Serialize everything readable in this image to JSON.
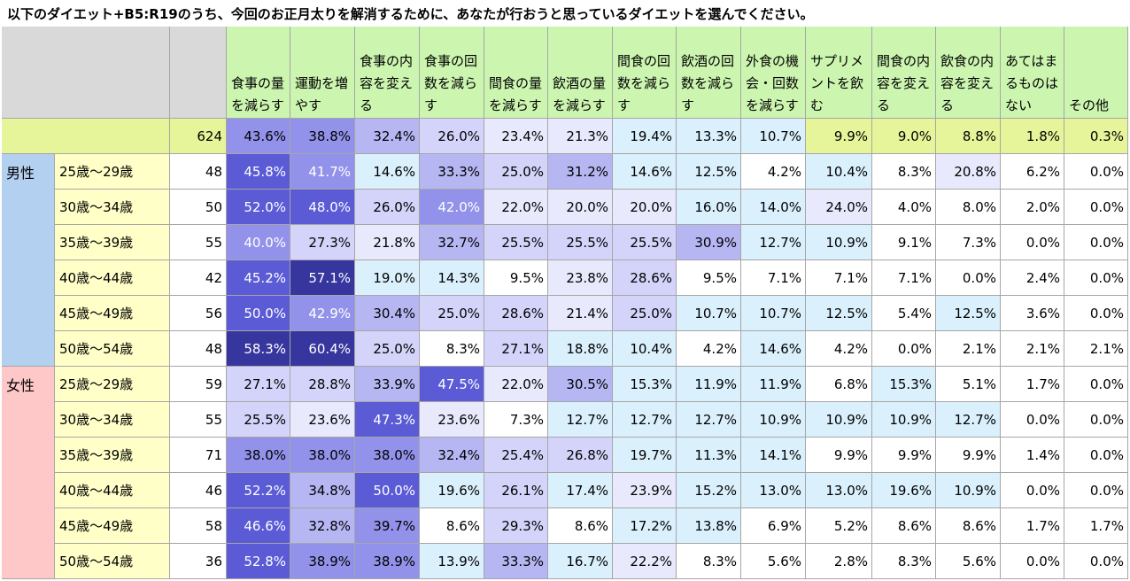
{
  "title": "以下のダイエット+B5:R19のうち、今回のお正月太りを解消するために、あなたが行おうと思っているダイエットを選んでください。",
  "chart_data": {
    "type": "table",
    "columns": [
      "食事の量を減らす",
      "運動を増やす",
      "食事の内容を変える",
      "食事の回数を減らす",
      "間食の量を減らす",
      "飲酒の量を減らす",
      "間食の回数を減らす",
      "飲酒の回数を減らす",
      "外食の機会・回数を減らす",
      "サプリメントを飲む",
      "間食の内容を変える",
      "飲食の内容を変える",
      "あてはまるものはない",
      "その他"
    ],
    "total": {
      "n": 624,
      "values": [
        "43.6%",
        "38.8%",
        "32.4%",
        "26.0%",
        "23.4%",
        "21.3%",
        "19.4%",
        "13.3%",
        "10.7%",
        "9.9%",
        "9.0%",
        "8.8%",
        "1.8%",
        "0.3%"
      ]
    },
    "groups": [
      {
        "label": "男性",
        "color": "#b4d0f0",
        "rows": [
          {
            "age": "25歳～29歳",
            "n": 48,
            "values": [
              "45.8%",
              "41.7%",
              "14.6%",
              "33.3%",
              "25.0%",
              "31.2%",
              "14.6%",
              "12.5%",
              "4.2%",
              "10.4%",
              "8.3%",
              "20.8%",
              "6.2%",
              "0.0%"
            ]
          },
          {
            "age": "30歳～34歳",
            "n": 50,
            "values": [
              "52.0%",
              "48.0%",
              "26.0%",
              "42.0%",
              "22.0%",
              "20.0%",
              "20.0%",
              "16.0%",
              "14.0%",
              "24.0%",
              "4.0%",
              "8.0%",
              "2.0%",
              "0.0%"
            ]
          },
          {
            "age": "35歳～39歳",
            "n": 55,
            "values": [
              "40.0%",
              "27.3%",
              "21.8%",
              "32.7%",
              "25.5%",
              "25.5%",
              "25.5%",
              "30.9%",
              "12.7%",
              "10.9%",
              "9.1%",
              "7.3%",
              "0.0%",
              "0.0%"
            ]
          },
          {
            "age": "40歳～44歳",
            "n": 42,
            "values": [
              "45.2%",
              "57.1%",
              "19.0%",
              "14.3%",
              "9.5%",
              "23.8%",
              "28.6%",
              "9.5%",
              "7.1%",
              "7.1%",
              "7.1%",
              "0.0%",
              "2.4%",
              "0.0%"
            ]
          },
          {
            "age": "45歳～49歳",
            "n": 56,
            "values": [
              "50.0%",
              "42.9%",
              "30.4%",
              "25.0%",
              "28.6%",
              "21.4%",
              "25.0%",
              "10.7%",
              "10.7%",
              "12.5%",
              "5.4%",
              "12.5%",
              "3.6%",
              "0.0%"
            ]
          },
          {
            "age": "50歳～54歳",
            "n": 48,
            "values": [
              "58.3%",
              "60.4%",
              "25.0%",
              "8.3%",
              "27.1%",
              "18.8%",
              "10.4%",
              "4.2%",
              "14.6%",
              "4.2%",
              "0.0%",
              "2.1%",
              "2.1%",
              "2.1%"
            ]
          }
        ]
      },
      {
        "label": "女性",
        "color": "#ffc8c8",
        "rows": [
          {
            "age": "25歳～29歳",
            "n": 59,
            "values": [
              "27.1%",
              "28.8%",
              "33.9%",
              "47.5%",
              "22.0%",
              "30.5%",
              "15.3%",
              "11.9%",
              "11.9%",
              "6.8%",
              "15.3%",
              "5.1%",
              "1.7%",
              "0.0%"
            ]
          },
          {
            "age": "30歳～34歳",
            "n": 55,
            "values": [
              "25.5%",
              "23.6%",
              "47.3%",
              "23.6%",
              "7.3%",
              "12.7%",
              "12.7%",
              "12.7%",
              "10.9%",
              "10.9%",
              "10.9%",
              "12.7%",
              "0.0%",
              "0.0%"
            ]
          },
          {
            "age": "35歳～39歳",
            "n": 71,
            "values": [
              "38.0%",
              "38.0%",
              "38.0%",
              "32.4%",
              "25.4%",
              "26.8%",
              "19.7%",
              "11.3%",
              "14.1%",
              "9.9%",
              "9.9%",
              "9.9%",
              "1.4%",
              "0.0%"
            ]
          },
          {
            "age": "40歳～44歳",
            "n": 46,
            "values": [
              "52.2%",
              "34.8%",
              "50.0%",
              "19.6%",
              "26.1%",
              "17.4%",
              "23.9%",
              "15.2%",
              "13.0%",
              "13.0%",
              "19.6%",
              "10.9%",
              "0.0%",
              "0.0%"
            ]
          },
          {
            "age": "45歳～49歳",
            "n": 58,
            "values": [
              "46.6%",
              "32.8%",
              "39.7%",
              "8.6%",
              "29.3%",
              "8.6%",
              "17.2%",
              "13.8%",
              "6.9%",
              "5.2%",
              "8.6%",
              "8.6%",
              "1.7%",
              "1.7%"
            ]
          },
          {
            "age": "50歳～54歳",
            "n": 36,
            "values": [
              "52.8%",
              "38.9%",
              "38.9%",
              "13.9%",
              "33.3%",
              "16.7%",
              "22.2%",
              "8.3%",
              "5.6%",
              "2.8%",
              "8.3%",
              "5.6%",
              "0.0%",
              "0.0%"
            ]
          }
        ]
      }
    ]
  }
}
